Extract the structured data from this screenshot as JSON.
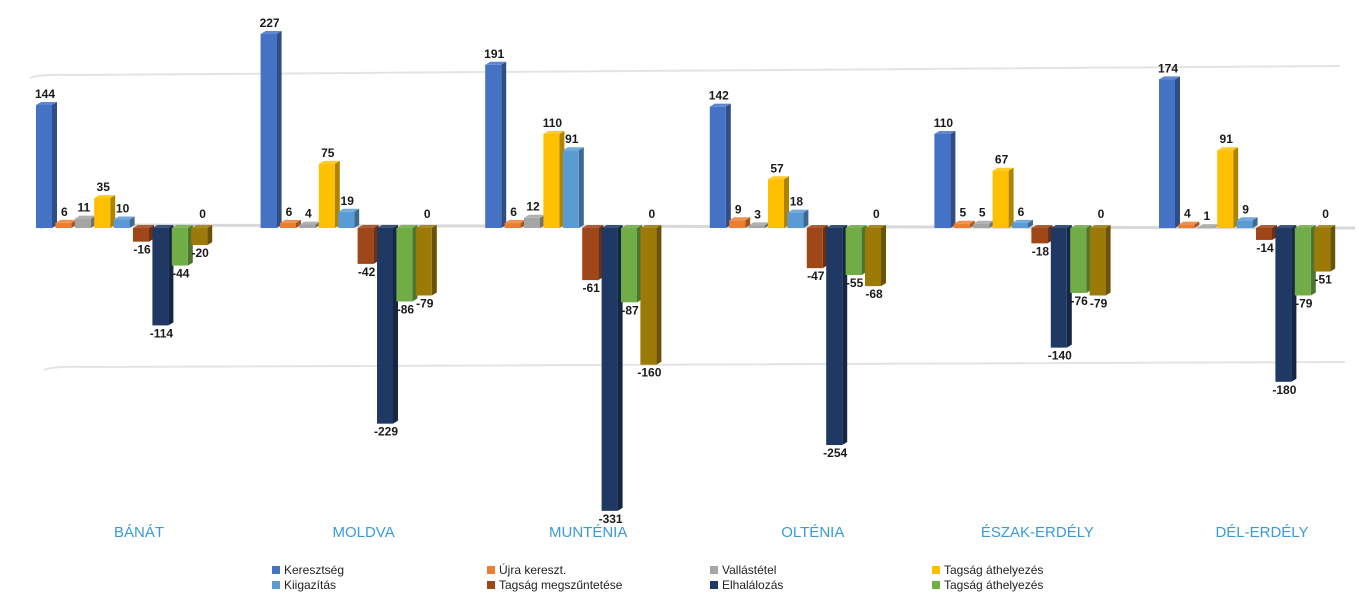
{
  "chart_data": {
    "type": "bar",
    "categories": [
      "BÁNÁT",
      "MOLDVA",
      "MUNTÉNIA",
      "OLTÉNIA",
      "ÉSZAK-ERDÉLY",
      "DÉL-ERDÉLY"
    ],
    "series": [
      {
        "name": "Keresztség",
        "color": "#4472c4",
        "values": [
          144,
          227,
          191,
          142,
          110,
          174
        ]
      },
      {
        "name": "Újra kereszt.",
        "color": "#ed7d31",
        "values": [
          6,
          6,
          6,
          9,
          5,
          4
        ]
      },
      {
        "name": "Vallástétel",
        "color": "#a5a5a5",
        "values": [
          11,
          4,
          12,
          3,
          5,
          1
        ]
      },
      {
        "name": "Tagság áthelyezés",
        "color": "#ffc000",
        "values": [
          35,
          75,
          110,
          57,
          67,
          91
        ]
      },
      {
        "name": "Kiigazítás",
        "color": "#5b9bd5",
        "values": [
          10,
          19,
          91,
          18,
          6,
          9
        ]
      },
      {
        "name": "Tagság megszűntetése",
        "color": "#a0471a",
        "values": [
          -16,
          -42,
          -61,
          -47,
          -18,
          -14
        ]
      },
      {
        "name": "Elhalálozás",
        "color": "#1f3864",
        "values": [
          -114,
          -229,
          -331,
          -254,
          -140,
          -180
        ]
      },
      {
        "name": "Tagság áthelyezés",
        "color": "#70ad47",
        "values": [
          -44,
          -86,
          -87,
          -55,
          -76,
          -79
        ]
      },
      {
        "name": "",
        "color": "#9c7a08",
        "values": [
          -20,
          -79,
          -160,
          -68,
          -79,
          -51
        ]
      }
    ],
    "zero_labels": [
      "0",
      "0",
      "0",
      "0",
      "0",
      "0"
    ],
    "ylim": [
      -331,
      227
    ],
    "grid": false,
    "legend_position": "bottom"
  }
}
